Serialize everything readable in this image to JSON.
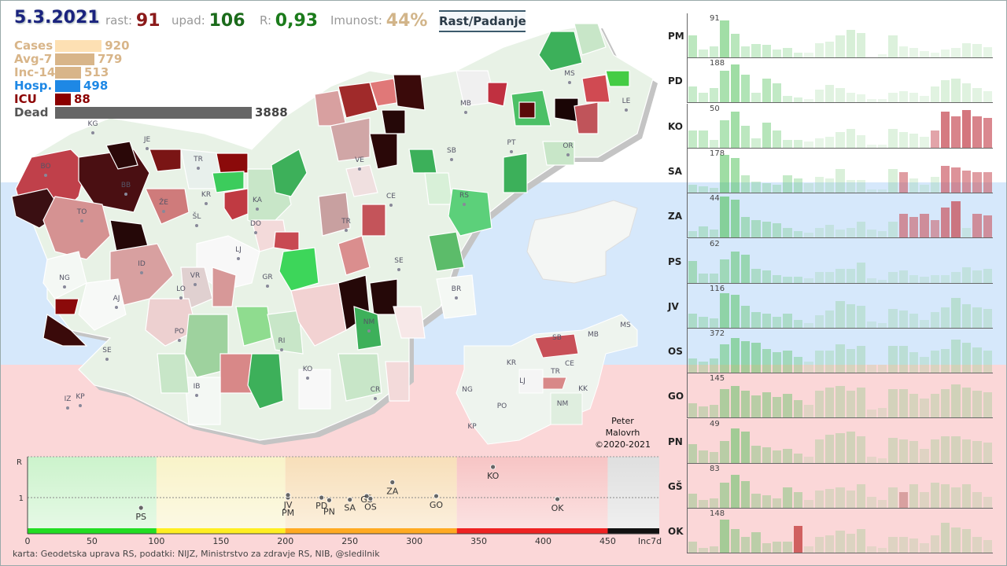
{
  "header": {
    "date": "5.3.2021",
    "growth_label": "rast:",
    "growth_value": "91",
    "decline_label": "upad:",
    "decline_value": "106",
    "r_label": "R:",
    "r_value": "0,93",
    "immunity_label": "Imunost:",
    "immunity_value": "44%",
    "toggle_button": "Rast/Padanje"
  },
  "stats": [
    {
      "label": "Cases",
      "value": "920",
      "fraction": 0.237,
      "color": "#fde0b3"
    },
    {
      "label": "Avg-7",
      "value": "779",
      "fraction": 0.2,
      "color": "#d8b589"
    },
    {
      "label": "Inc-14",
      "value": "513",
      "fraction": 0.132,
      "color": "#d8b589"
    },
    {
      "label": "Hosp.",
      "value": "498",
      "fraction": 0.128,
      "color": "#1e88e5"
    },
    {
      "label": "ICU",
      "value": "88",
      "fraction": 0.023,
      "color": "#8b0000"
    },
    {
      "label": "Dead",
      "value": "3888",
      "fraction": 1.0,
      "color": "#666666"
    }
  ],
  "map_labels": [
    "KG",
    "JE",
    "BO",
    "TR",
    "BB",
    "ŽE",
    "KR",
    "ŠL",
    "TO",
    "KA",
    "DO",
    "LJ",
    "ID",
    "VR",
    "GR",
    "NG",
    "AJ",
    "LO",
    "PO",
    "SE",
    "RI",
    "KO",
    "IZ",
    "KP",
    "IB",
    "VE",
    "CE",
    "TR",
    "RS",
    "SE",
    "BR",
    "NM",
    "CR",
    "MB",
    "SB",
    "PT",
    "OR",
    "MS",
    "LE"
  ],
  "inset_labels": [
    "MS",
    "MB",
    "SB",
    "KR",
    "CE",
    "LJ",
    "TR",
    "NG",
    "KK",
    "PO",
    "NM",
    "KP"
  ],
  "credit": [
    "Peter",
    "Malovrh",
    "©2020-2021"
  ],
  "footer": "karta: Geodetska uprava RS,  podatki: NIJZ, Ministrstvo za zdravje RS, NIB, @sledilnik",
  "chart_data": {
    "type": "scatter",
    "title": "",
    "xlabel": "Inc7d",
    "ylabel": "R",
    "xlim": [
      0,
      490
    ],
    "x_ticks": [
      0,
      50,
      100,
      150,
      200,
      250,
      300,
      350,
      400,
      450
    ],
    "y_ticks": [
      "1"
    ],
    "zone_colors": [
      "#22dd22",
      "#ffee22",
      "#ffaa22",
      "#ee2222",
      "#111111"
    ],
    "points": [
      {
        "name": "PS",
        "x": 88,
        "y": 0.8
      },
      {
        "name": "JV",
        "x": 202,
        "y": 1.0
      },
      {
        "name": "PM",
        "x": 202,
        "y": 1.05
      },
      {
        "name": "PD",
        "x": 228,
        "y": 1.0
      },
      {
        "name": "PN",
        "x": 234,
        "y": 0.95
      },
      {
        "name": "SA",
        "x": 250,
        "y": 0.96
      },
      {
        "name": "GŠ",
        "x": 263,
        "y": 1.03
      },
      {
        "name": "OS",
        "x": 266,
        "y": 0.98
      },
      {
        "name": "ZA",
        "x": 283,
        "y": 1.3
      },
      {
        "name": "GO",
        "x": 317,
        "y": 1.03
      },
      {
        "name": "KO",
        "x": 361,
        "y": 1.6
      },
      {
        "name": "OK",
        "x": 411,
        "y": 0.97
      }
    ],
    "regions": [
      {
        "code": "PM",
        "max": "91",
        "values": [
          28,
          10,
          14,
          47,
          30,
          14,
          17,
          16,
          10,
          12,
          6,
          6,
          18,
          20,
          28,
          35,
          31,
          0,
          4,
          28,
          14,
          12,
          8,
          6,
          10,
          12,
          18,
          17,
          13
        ]
      },
      {
        "code": "PD",
        "max": "188",
        "values": [
          20,
          12,
          18,
          40,
          48,
          35,
          12,
          30,
          24,
          8,
          6,
          4,
          16,
          22,
          18,
          12,
          10,
          4,
          4,
          12,
          14,
          12,
          8,
          20,
          28,
          30,
          24,
          18,
          14
        ]
      },
      {
        "code": "KO",
        "max": "50",
        "values": [
          22,
          22,
          10,
          35,
          46,
          28,
          12,
          32,
          22,
          10,
          10,
          8,
          12,
          14,
          20,
          24,
          16,
          4,
          4,
          24,
          20,
          18,
          14,
          22,
          46,
          40,
          48,
          40,
          38
        ]
      },
      {
        "code": "SA",
        "max": "178",
        "values": [
          10,
          8,
          6,
          48,
          44,
          22,
          14,
          12,
          10,
          22,
          18,
          12,
          20,
          18,
          30,
          16,
          16,
          4,
          4,
          30,
          26,
          18,
          10,
          20,
          34,
          32,
          28,
          26,
          26
        ]
      },
      {
        "code": "ZA",
        "max": "44",
        "values": [
          8,
          14,
          10,
          54,
          48,
          26,
          22,
          20,
          18,
          12,
          8,
          6,
          12,
          16,
          10,
          12,
          20,
          10,
          8,
          20,
          30,
          26,
          30,
          22,
          38,
          46,
          12,
          30,
          28
        ]
      },
      {
        "code": "PS",
        "max": "62",
        "values": [
          28,
          12,
          12,
          30,
          40,
          36,
          18,
          16,
          10,
          8,
          8,
          6,
          14,
          14,
          18,
          18,
          26,
          6,
          4,
          14,
          16,
          10,
          8,
          10,
          10,
          14,
          20,
          16,
          18
        ]
      },
      {
        "code": "JV",
        "max": "116",
        "values": [
          18,
          14,
          12,
          44,
          42,
          28,
          20,
          18,
          14,
          18,
          10,
          6,
          16,
          22,
          34,
          30,
          28,
          8,
          6,
          24,
          22,
          18,
          10,
          20,
          26,
          38,
          30,
          26,
          24
        ]
      },
      {
        "code": "OS",
        "max": "372",
        "values": [
          18,
          14,
          18,
          36,
          44,
          40,
          38,
          30,
          26,
          28,
          20,
          14,
          28,
          28,
          36,
          30,
          34,
          10,
          10,
          34,
          34,
          26,
          20,
          28,
          30,
          42,
          38,
          32,
          28
        ]
      },
      {
        "code": "GO",
        "max": "145",
        "values": [
          18,
          14,
          16,
          36,
          40,
          34,
          28,
          32,
          26,
          30,
          22,
          16,
          34,
          38,
          40,
          34,
          38,
          10,
          12,
          36,
          36,
          30,
          24,
          30,
          36,
          42,
          38,
          34,
          32
        ]
      },
      {
        "code": "PN",
        "max": "49",
        "values": [
          24,
          16,
          14,
          28,
          44,
          40,
          22,
          20,
          16,
          18,
          12,
          8,
          30,
          36,
          38,
          40,
          34,
          8,
          6,
          32,
          30,
          28,
          18,
          30,
          34,
          34,
          30,
          28,
          26
        ]
      },
      {
        "code": "GŠ",
        "max": "83",
        "values": [
          18,
          10,
          12,
          32,
          42,
          34,
          18,
          16,
          12,
          26,
          20,
          10,
          22,
          24,
          26,
          22,
          30,
          14,
          10,
          26,
          20,
          30,
          20,
          32,
          30,
          26,
          30,
          20,
          14
        ]
      },
      {
        "code": "OK",
        "max": "148",
        "values": [
          14,
          6,
          8,
          42,
          30,
          20,
          26,
          12,
          14,
          14,
          34,
          8,
          20,
          22,
          28,
          24,
          30,
          8,
          6,
          20,
          20,
          18,
          12,
          22,
          38,
          32,
          30,
          20,
          16
        ]
      }
    ]
  }
}
